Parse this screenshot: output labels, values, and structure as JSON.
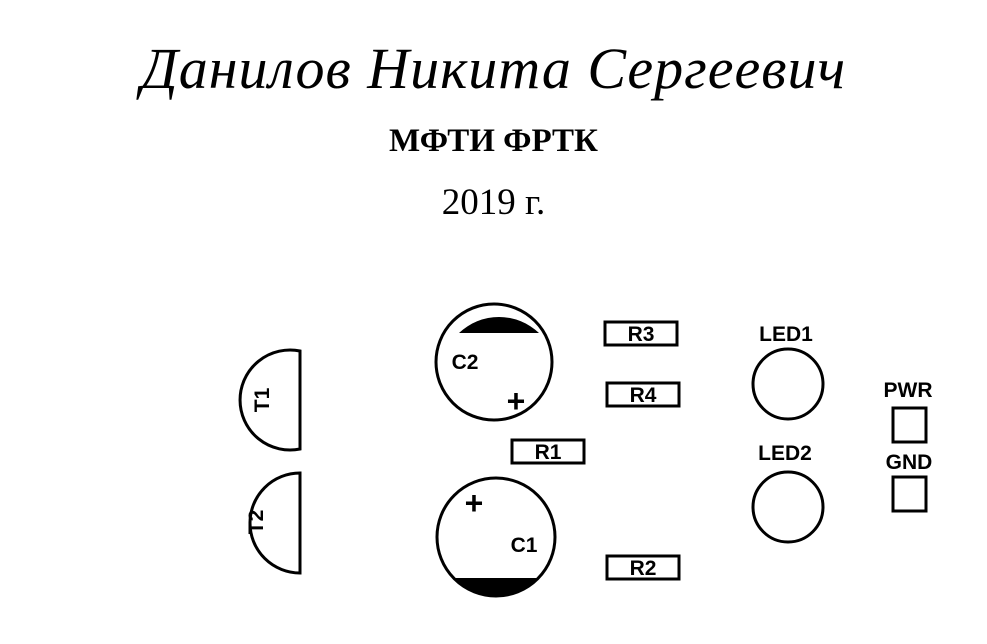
{
  "header": {
    "author": "Данилов Никита Сергеевич",
    "institute": "МФТИ ФРТК",
    "year": "2019 г."
  },
  "board": {
    "components": {
      "t1": "T1",
      "t2": "T2",
      "c1": "C1",
      "c2": "C2",
      "polarity_c1": "+",
      "polarity_c2": "+",
      "r1": "R1",
      "r2": "R2",
      "r3": "R3",
      "r4": "R4",
      "led1": "LED1",
      "led2": "LED2",
      "pwr": "PWR",
      "gnd": "GND"
    },
    "colors": {
      "silkscreen": "#000000",
      "background": "#ffffff"
    }
  }
}
